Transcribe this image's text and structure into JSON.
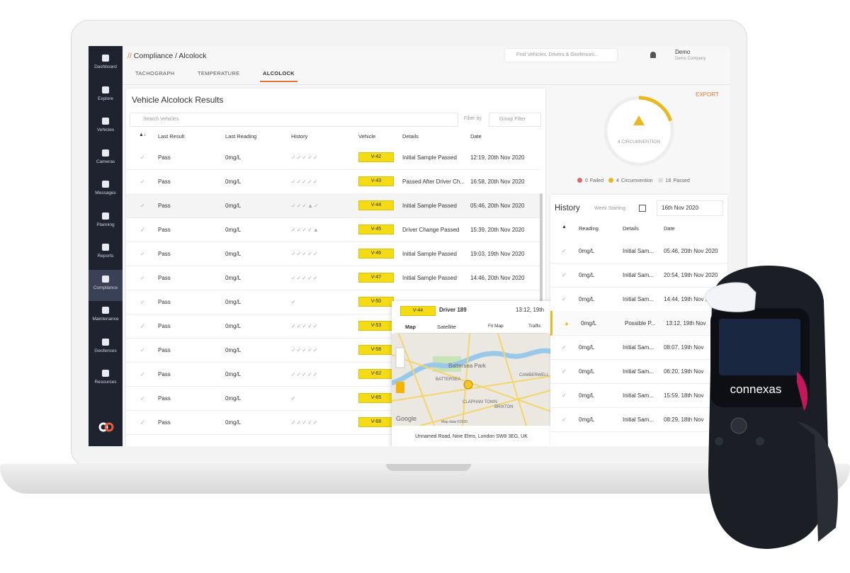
{
  "sidebar": {
    "items": [
      "Dashboard",
      "Explore",
      "Vehicles",
      "Cameras",
      "Messages",
      "Planning",
      "Reports",
      "Compliance",
      "Maintenance",
      "Geofences",
      "Resources"
    ],
    "active": 7
  },
  "header": {
    "prefix": "//",
    "section": "Compliance",
    "separator": "/",
    "page": "Alcolock",
    "search": "Find Vehicles, Drivers & Geofences...",
    "user": "Demo",
    "company": "Demo Company"
  },
  "tabs": {
    "items": [
      "TACHOGRAPH",
      "TEMPERATURE",
      "ALCOLOCK"
    ],
    "active": 2
  },
  "results": {
    "title": "Vehicle Alcolock Results",
    "search": "Search Vehicles",
    "filter_label": "Filter by",
    "group_filter": "Group Filter",
    "columns": [
      "Last Result",
      "Last Reading",
      "History",
      "Vehicle",
      "Details",
      "Date"
    ],
    "rows": [
      {
        "result": "Pass",
        "reading": "0mg/L",
        "history": "✓✓✓✓✓",
        "vehicle": "V-42",
        "details": "Initial Sample Passed",
        "date": "12:19, 20th Nov 2020"
      },
      {
        "result": "Pass",
        "reading": "0mg/L",
        "history": "✓✓✓✓✓",
        "vehicle": "V-43",
        "details": "Passed After Driver Ch...",
        "date": "16:58, 20th Nov 2020"
      },
      {
        "result": "Pass",
        "reading": "0mg/L",
        "history": "✓✓✓▲✓",
        "vehicle": "V-44",
        "details": "Initial Sample Passed",
        "date": "05:46, 20th Nov 2020"
      },
      {
        "result": "Pass",
        "reading": "0mg/L",
        "history": "✓✓✓✓▲",
        "vehicle": "V-45",
        "details": "Driver Change Passed",
        "date": "15:39, 20th Nov 2020"
      },
      {
        "result": "Pass",
        "reading": "0mg/L",
        "history": "✓✓✓✓✓",
        "vehicle": "V-46",
        "details": "Initial Sample Passed",
        "date": "19:03, 19th Nov 2020"
      },
      {
        "result": "Pass",
        "reading": "0mg/L",
        "history": "✓✓✓✓✓",
        "vehicle": "V-47",
        "details": "Initial Sample Passed",
        "date": "14:46, 20th Nov 2020"
      },
      {
        "result": "Pass",
        "reading": "0mg/L",
        "history": "✓",
        "vehicle": "V-50"
      },
      {
        "result": "Pass",
        "reading": "0mg/L",
        "history": "✓✓✓✓✓",
        "vehicle": "V-53"
      },
      {
        "result": "Pass",
        "reading": "0mg/L",
        "history": "✓✓✓✓✓",
        "vehicle": "V-58"
      },
      {
        "result": "Pass",
        "reading": "0mg/L",
        "history": "✓✓✓✓✓",
        "vehicle": "V-62"
      },
      {
        "result": "Pass",
        "reading": "0mg/L",
        "history": "✓",
        "vehicle": "V-65"
      },
      {
        "result": "Pass",
        "reading": "0mg/L",
        "history": "✓✓✓✓✓",
        "vehicle": "V-68"
      }
    ]
  },
  "popup": {
    "vehicle": "V-44",
    "driver": "Driver 189",
    "time": "13:12, 19th",
    "map_tab": "Map",
    "satellite_tab": "Satellite",
    "fit_map": "Fit Map",
    "traffic": "Traffic",
    "map_labels": [
      "Battersea Park",
      "BATTERSEA",
      "CLAPHAM TOWN",
      "BRIXTON",
      "CAMBERWELL",
      "Google",
      "Map data ©2020"
    ],
    "address": "Unnamed Road, Nine Elms, London SW8 3EG, UK"
  },
  "summary": {
    "export": "EXPORT",
    "donut_label": "4 CIRCUMVENTION",
    "legend": [
      {
        "count": 0,
        "label": "Failed",
        "color": "#d9686a"
      },
      {
        "count": 4,
        "label": "Circumvention",
        "color": "#e8b923"
      },
      {
        "count": 16,
        "label": "Passed",
        "color": "#dddddd"
      }
    ]
  },
  "history": {
    "title": "History",
    "week_label": "Week Starting",
    "week": "16th Nov 2020",
    "columns": [
      "Reading",
      "Details",
      "Date"
    ],
    "rows": [
      {
        "reading": "0mg/L",
        "details": "Initial Sam...",
        "date": "05:46, 20th Nov 2020"
      },
      {
        "reading": "0mg/L",
        "details": "Initial Sam...",
        "date": "20:54, 19th Nov 2020"
      },
      {
        "reading": "0mg/L",
        "details": "Initial Sam...",
        "date": "14:44, 19th Nov 2020"
      },
      {
        "reading": "0mg/L",
        "details": "Possible P...",
        "date": "13:12, 19th Nov"
      },
      {
        "reading": "0mg/L",
        "details": "Initial Sam...",
        "date": "08:07, 19th Nov"
      },
      {
        "reading": "0mg/L",
        "details": "Initial Sam...",
        "date": "06:20, 19th Nov"
      },
      {
        "reading": "0mg/L",
        "details": "Initial Sam...",
        "date": "15:59, 18th Nov"
      },
      {
        "reading": "0mg/L",
        "details": "Initial Sam...",
        "date": "08:29, 18th Nov"
      }
    ]
  },
  "device": {
    "brand": "connexas"
  }
}
